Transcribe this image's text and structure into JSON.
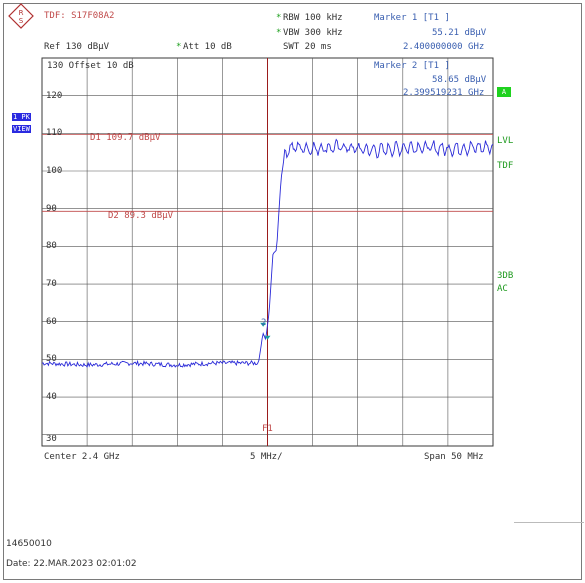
{
  "header": {
    "trace_detector": "TDF: S17F08A2",
    "rbw": "RBW 100 kHz",
    "vbw": "VBW 300 kHz",
    "swt": "SWT 20 ms",
    "ref": "Ref  130 dBµV",
    "att": "Att  10 dB",
    "star": "*"
  },
  "markers": {
    "m1_title": "Marker 1 [T1 ]",
    "m1_level": "55.21 dBµV",
    "m1_freq": "2.400000000 GHz",
    "m2_title": "Marker 2 [T1 ]",
    "m2_level": "58.65 dBµV",
    "m2_freq": "2.399519231 GHz"
  },
  "left_panel": {
    "trace_label_1": "1 PK",
    "trace_label_2": "VIEW"
  },
  "plot": {
    "offset_label": "130 Offset  10 dB",
    "y_ticks": [
      "120",
      "110",
      "100",
      "90",
      "80",
      "70",
      "60",
      "50",
      "40",
      "30"
    ],
    "d1_label": "D1 109.7 dBµV",
    "d2_label": "D2 89.3 dBµV",
    "f1_label": "F1",
    "marker2_label": "2"
  },
  "right_panel": {
    "a_box": "A",
    "lvl": "LVL",
    "tdf": "TDF",
    "db3": "3DB",
    "ac": "AC"
  },
  "footer": {
    "center": "Center  2.4 GHz",
    "per_div": "5 MHz/",
    "span": "Span  50 MHz",
    "id": "14650010",
    "date": "Date: 22.MAR.2023  02:01:02"
  },
  "chart_data": {
    "type": "line",
    "xlabel": "",
    "ylabel": "",
    "x_center_ghz": 2.4,
    "x_span_mhz": 50,
    "xlim_mhz_offset": [
      -25,
      25
    ],
    "ylim": [
      27,
      130
    ],
    "grid": true,
    "reference_lines": [
      {
        "label": "D1 109.7 dBµV",
        "value": 109.7
      },
      {
        "label": "D2 89.3 dBµV",
        "value": 89.3
      }
    ],
    "frequency_line": {
      "label": "F1",
      "x_mhz_offset": 0
    },
    "series": [
      {
        "x": [
          -25,
          -20,
          -15,
          -10,
          -6,
          -1,
          -0.5,
          -0.2,
          0.2,
          0.6,
          1.0,
          1.5,
          2,
          3,
          5,
          8,
          12,
          16,
          20,
          25
        ],
        "y": [
          49,
          48.5,
          49,
          48.5,
          49,
          49,
          57,
          55.2,
          63,
          78,
          79,
          98,
          106,
          107,
          106.5,
          107,
          106,
          107,
          106.5,
          107
        ]
      }
    ],
    "markers": [
      {
        "name": "Marker 1",
        "x_mhz_offset": 0,
        "y": 55.21
      },
      {
        "name": "Marker 2",
        "x_mhz_offset": -0.48,
        "y": 58.65
      }
    ]
  },
  "colors": {
    "trace": "#2a2ad8",
    "display_line": "#c04a4a",
    "f1_line": "#9b1c1c",
    "grid": "#3a3a3a"
  }
}
